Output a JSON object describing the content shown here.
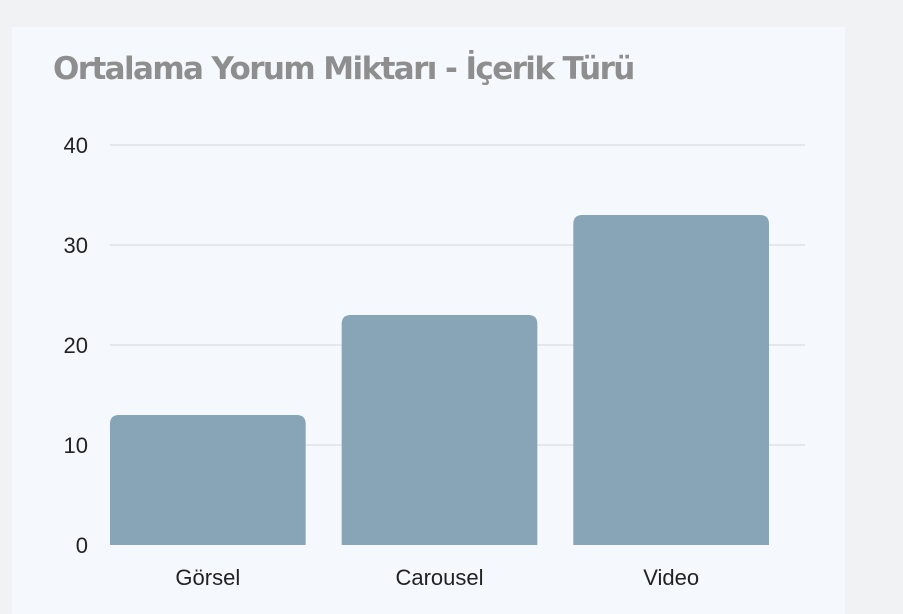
{
  "chart_data": {
    "type": "bar",
    "title": "Ortalama Yorum Miktarı - İçerik Türü",
    "categories": [
      "Görsel",
      "Carousel",
      "Video"
    ],
    "values": [
      13,
      23,
      33
    ],
    "ylim": [
      0,
      40
    ],
    "yticks": [
      0,
      10,
      20,
      30,
      40
    ],
    "xlabel": "",
    "ylabel": "",
    "grid": true,
    "legend": "none",
    "colors": {
      "bar": "#87a5b6",
      "grid": "#dde2e8",
      "text": "#222222",
      "title": "#8e8e8e",
      "card": "#f5f8fc",
      "background": "#f1f2f4"
    }
  }
}
